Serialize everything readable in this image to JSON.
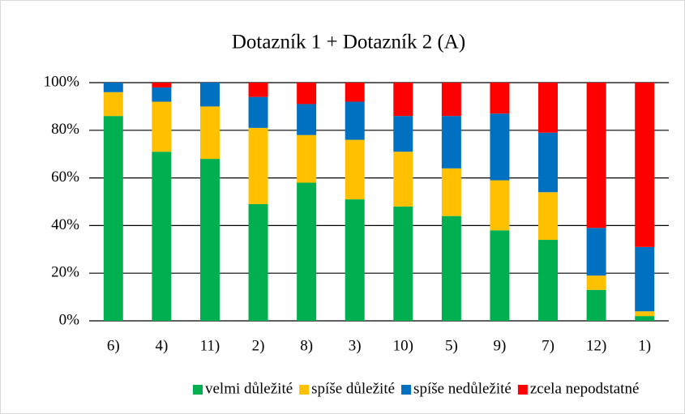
{
  "chart_data": {
    "type": "stacked_bar",
    "title": "Dotazník 1 + Dotazník 2 (A)",
    "categories": [
      "6)",
      "4)",
      "11)",
      "2)",
      "8)",
      "3)",
      "10)",
      "5)",
      "9)",
      "7)",
      "12)",
      "1)"
    ],
    "series": [
      {
        "name": "velmi důležité",
        "color": "#00b050",
        "values": [
          86,
          71,
          68,
          49,
          58,
          51,
          48,
          44,
          38,
          34,
          13,
          2
        ]
      },
      {
        "name": "spíše důležité",
        "color": "#ffc000",
        "values": [
          10,
          21,
          22,
          32,
          20,
          25,
          23,
          20,
          21,
          20,
          6,
          2
        ]
      },
      {
        "name": "spíše nedůležité",
        "color": "#0070c0",
        "values": [
          4,
          6,
          10,
          13,
          13,
          16,
          15,
          22,
          28,
          25,
          20,
          27
        ]
      },
      {
        "name": "zcela nepodstatné",
        "color": "#ff0000",
        "values": [
          0,
          2,
          0,
          6,
          9,
          8,
          14,
          14,
          13,
          21,
          61,
          69
        ]
      }
    ],
    "ylim": [
      0,
      100
    ],
    "yticks": [
      {
        "value": 0,
        "label": "0%"
      },
      {
        "value": 20,
        "label": "20%"
      },
      {
        "value": 40,
        "label": "40%"
      },
      {
        "value": 60,
        "label": "60%"
      },
      {
        "value": 80,
        "label": "80%"
      },
      {
        "value": 100,
        "label": "100%"
      }
    ],
    "grid": true,
    "legend": "bottom"
  }
}
